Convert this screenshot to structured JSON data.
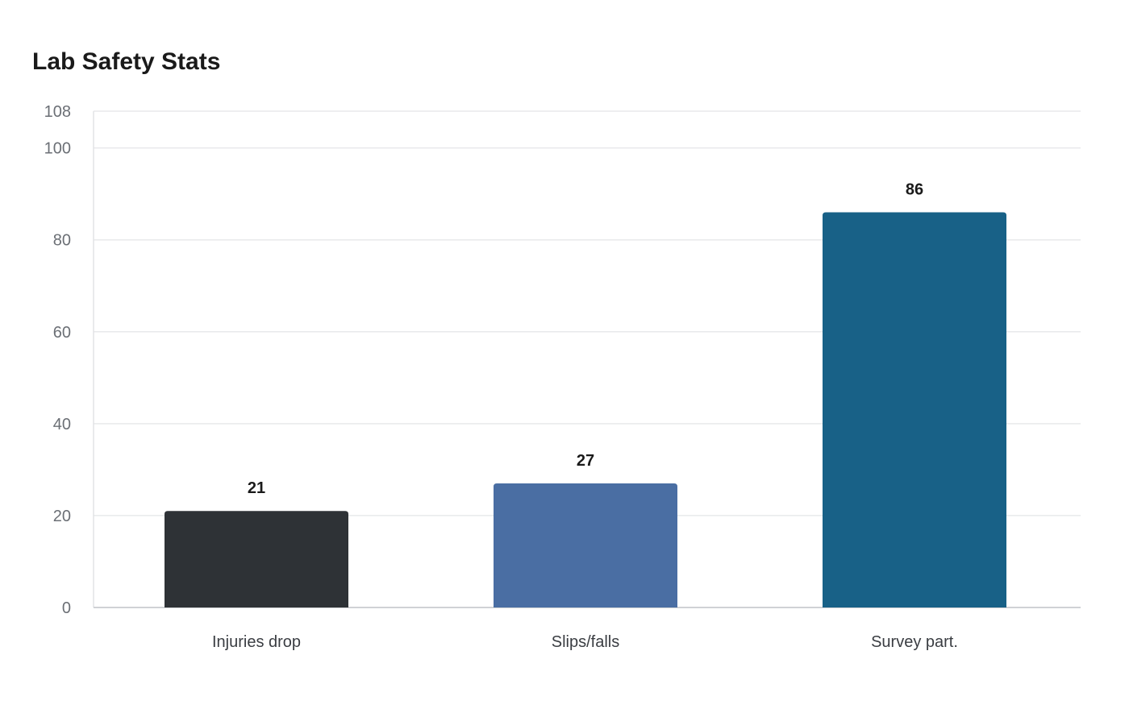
{
  "chart_data": {
    "type": "bar",
    "title": "Lab Safety Stats",
    "xlabel": "",
    "ylabel": "",
    "categories": [
      "Injuries drop",
      "Slips/falls",
      "Survey part."
    ],
    "values": [
      21,
      27,
      86
    ],
    "colors": [
      "#2e3236",
      "#4a6ea3",
      "#186187"
    ],
    "ylim": [
      0,
      108
    ],
    "yticks": [
      0,
      20,
      40,
      60,
      80,
      100,
      108
    ],
    "grid": true,
    "data_labels": true
  }
}
